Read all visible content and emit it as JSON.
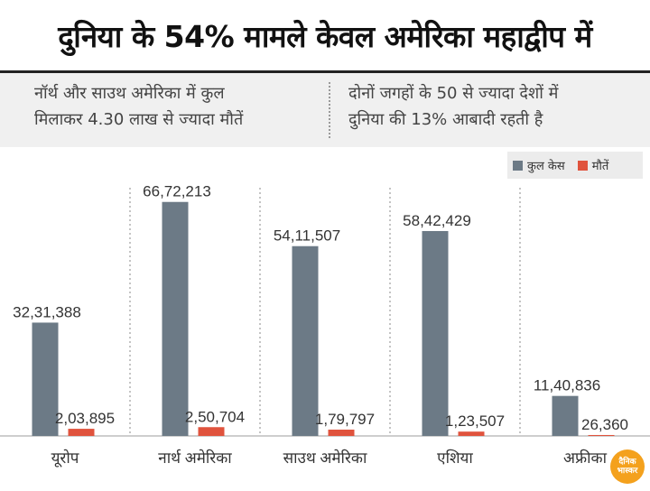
{
  "header": {
    "title": "दुनिया के 54% मामले केवल अमेरिका महाद्वीप में"
  },
  "subtitle": {
    "left_line1": "नॉर्थ और साउथ अमेरिका में कुल",
    "left_line2": "मिलाकर 4.30 लाख से ज्यादा मौतें",
    "right_line1": "दोनों जगहों के 50 से ज्यादा देशों में",
    "right_line2": "दुनिया की 13% आबादी रहती है"
  },
  "legend": {
    "cases_label": "कुल केस",
    "deaths_label": "मौतें"
  },
  "logo": {
    "line1": "दैनिक",
    "line2": "भास्कर"
  },
  "chart_data": {
    "type": "bar",
    "categories": [
      "यूरोप",
      "नार्थ अमेरिका",
      "साउथ अमेरिका",
      "एशिया",
      "अफ्रीका"
    ],
    "series": [
      {
        "name": "कुल केस",
        "values": [
          3231388,
          6672213,
          5411507,
          5842429,
          1140836
        ],
        "labels": [
          "32,31,388",
          "66,72,213",
          "54,11,507",
          "58,42,429",
          "11,40,836"
        ],
        "color": "#6c7a86"
      },
      {
        "name": "मौतें",
        "values": [
          203895,
          250704,
          179797,
          123507,
          26360
        ],
        "labels": [
          "2,03,895",
          "2,50,704",
          "1,79,797",
          "1,23,507",
          "26,360"
        ],
        "color": "#e0533d"
      }
    ],
    "ylim": [
      0,
      7000000
    ],
    "grid": false,
    "legend_position": "top-right",
    "title": "",
    "xlabel": "",
    "ylabel": ""
  }
}
